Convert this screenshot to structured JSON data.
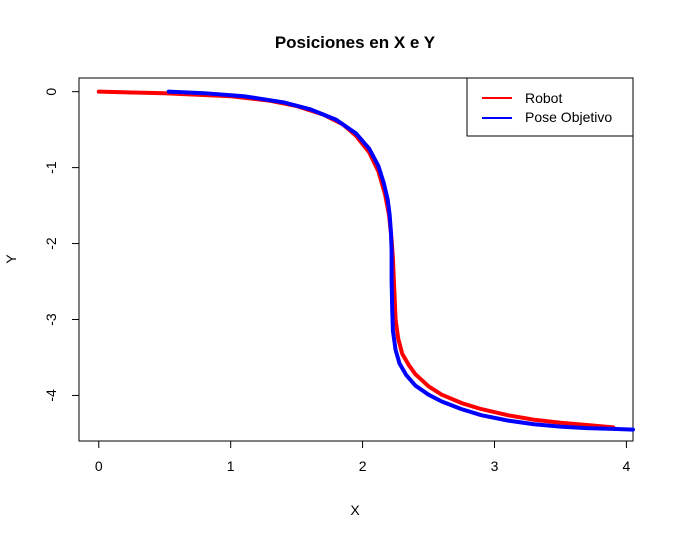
{
  "chart_data": {
    "type": "line",
    "title": "Posiciones en X e Y",
    "xlabel": "X",
    "ylabel": "Y",
    "xlim": [
      -0.15,
      4.05
    ],
    "ylim": [
      -4.6,
      0.18
    ],
    "xticks": [
      0,
      1,
      2,
      3,
      4
    ],
    "xtick_labels": [
      "0",
      "1",
      "2",
      "3",
      "4"
    ],
    "yticks": [
      0,
      -1,
      -2,
      -3,
      -4
    ],
    "ytick_labels": [
      "0",
      "-1",
      "-2",
      "-3",
      "-4"
    ],
    "grid": false,
    "legend_position": "top-right",
    "series": [
      {
        "name": "Robot",
        "color": "#ff0000",
        "x": [
          0.0,
          0.5,
          1.0,
          1.3,
          1.5,
          1.7,
          1.85,
          1.95,
          2.05,
          2.12,
          2.17,
          2.2,
          2.22,
          2.23,
          2.235,
          2.24,
          2.245,
          2.25,
          2.27,
          2.3,
          2.35,
          2.4,
          2.5,
          2.6,
          2.75,
          2.9,
          3.1,
          3.3,
          3.5,
          3.7,
          3.9
        ],
        "y": [
          0.0,
          -0.02,
          -0.06,
          -0.12,
          -0.19,
          -0.3,
          -0.43,
          -0.58,
          -0.8,
          -1.05,
          -1.35,
          -1.62,
          -1.95,
          -2.2,
          -2.4,
          -2.6,
          -2.8,
          -3.0,
          -3.25,
          -3.45,
          -3.6,
          -3.72,
          -3.88,
          -3.99,
          -4.1,
          -4.18,
          -4.26,
          -4.32,
          -4.36,
          -4.39,
          -4.42
        ]
      },
      {
        "name": "Pose Objetivo",
        "color": "#0000ff",
        "x": [
          0.53,
          0.8,
          1.1,
          1.4,
          1.6,
          1.8,
          1.95,
          2.05,
          2.12,
          2.16,
          2.19,
          2.205,
          2.215,
          2.22,
          2.22,
          2.225,
          2.23,
          2.25,
          2.28,
          2.33,
          2.4,
          2.5,
          2.6,
          2.75,
          2.9,
          3.1,
          3.3,
          3.5,
          3.7,
          3.9,
          4.05
        ],
        "y": [
          0.0,
          -0.02,
          -0.06,
          -0.14,
          -0.23,
          -0.37,
          -0.55,
          -0.75,
          -0.98,
          -1.2,
          -1.42,
          -1.62,
          -1.85,
          -2.1,
          -2.5,
          -2.9,
          -3.15,
          -3.4,
          -3.58,
          -3.73,
          -3.87,
          -3.99,
          -4.08,
          -4.18,
          -4.26,
          -4.33,
          -4.38,
          -4.41,
          -4.43,
          -4.44,
          -4.45
        ]
      }
    ]
  }
}
